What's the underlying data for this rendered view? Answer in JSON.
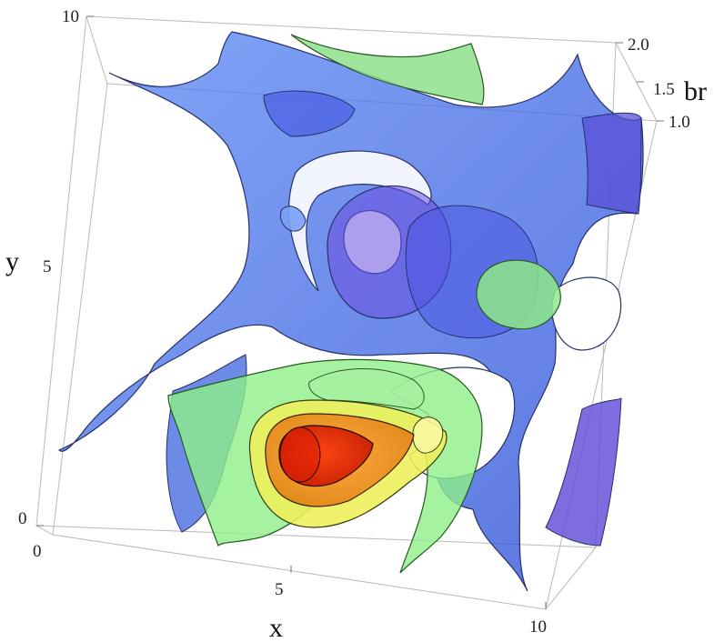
{
  "chart_data": {
    "type": "contour3d",
    "axes": {
      "x": {
        "label": "x",
        "ticks": [
          "0",
          "5",
          "10"
        ],
        "range": [
          0,
          10
        ]
      },
      "y": {
        "label": "y",
        "ticks": [
          "0",
          "5",
          "10"
        ],
        "range": [
          0,
          10
        ]
      },
      "z": {
        "label": "br",
        "ticks": [
          "1.0",
          "1.5",
          "2.0"
        ],
        "range": [
          1.0,
          2.0
        ]
      }
    },
    "contour_surfaces": [
      {
        "level": "lowest",
        "color": "#3f6fe8"
      },
      {
        "level": "low",
        "color": "#8ee68a"
      },
      {
        "level": "middle",
        "color": "#f0f05a"
      },
      {
        "level": "high",
        "color": "#f0a030"
      },
      {
        "level": "highest",
        "color": "#e52010"
      }
    ],
    "grid": false,
    "box": true
  }
}
